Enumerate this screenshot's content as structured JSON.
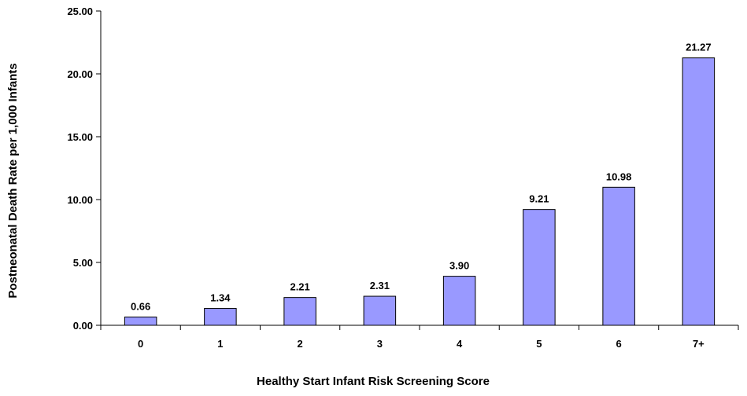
{
  "chart_data": {
    "type": "bar",
    "title": "",
    "xlabel": "Healthy Start Infant Risk Screening Score",
    "ylabel": "Postneonatal Death Rate per 1,000 Infants",
    "categories": [
      "0",
      "1",
      "2",
      "3",
      "4",
      "5",
      "6",
      "7+"
    ],
    "values": [
      0.66,
      1.34,
      2.21,
      2.31,
      3.9,
      9.21,
      10.98,
      21.27
    ],
    "data_labels": [
      "0.66",
      "1.34",
      "2.21",
      "2.31",
      "3.90",
      "9.21",
      "10.98",
      "21.27"
    ],
    "ylim": [
      0,
      25
    ],
    "yticks": [
      0,
      5,
      10,
      15,
      20,
      25
    ],
    "ytick_labels": [
      "0.00",
      "5.00",
      "10.00",
      "15.00",
      "20.00",
      "25.00"
    ],
    "grid": false,
    "legend": "none",
    "colors": {
      "bar_fill": "#9999ff",
      "bar_stroke": "#000000",
      "axis": "#000000",
      "background": "#ffffff"
    }
  }
}
